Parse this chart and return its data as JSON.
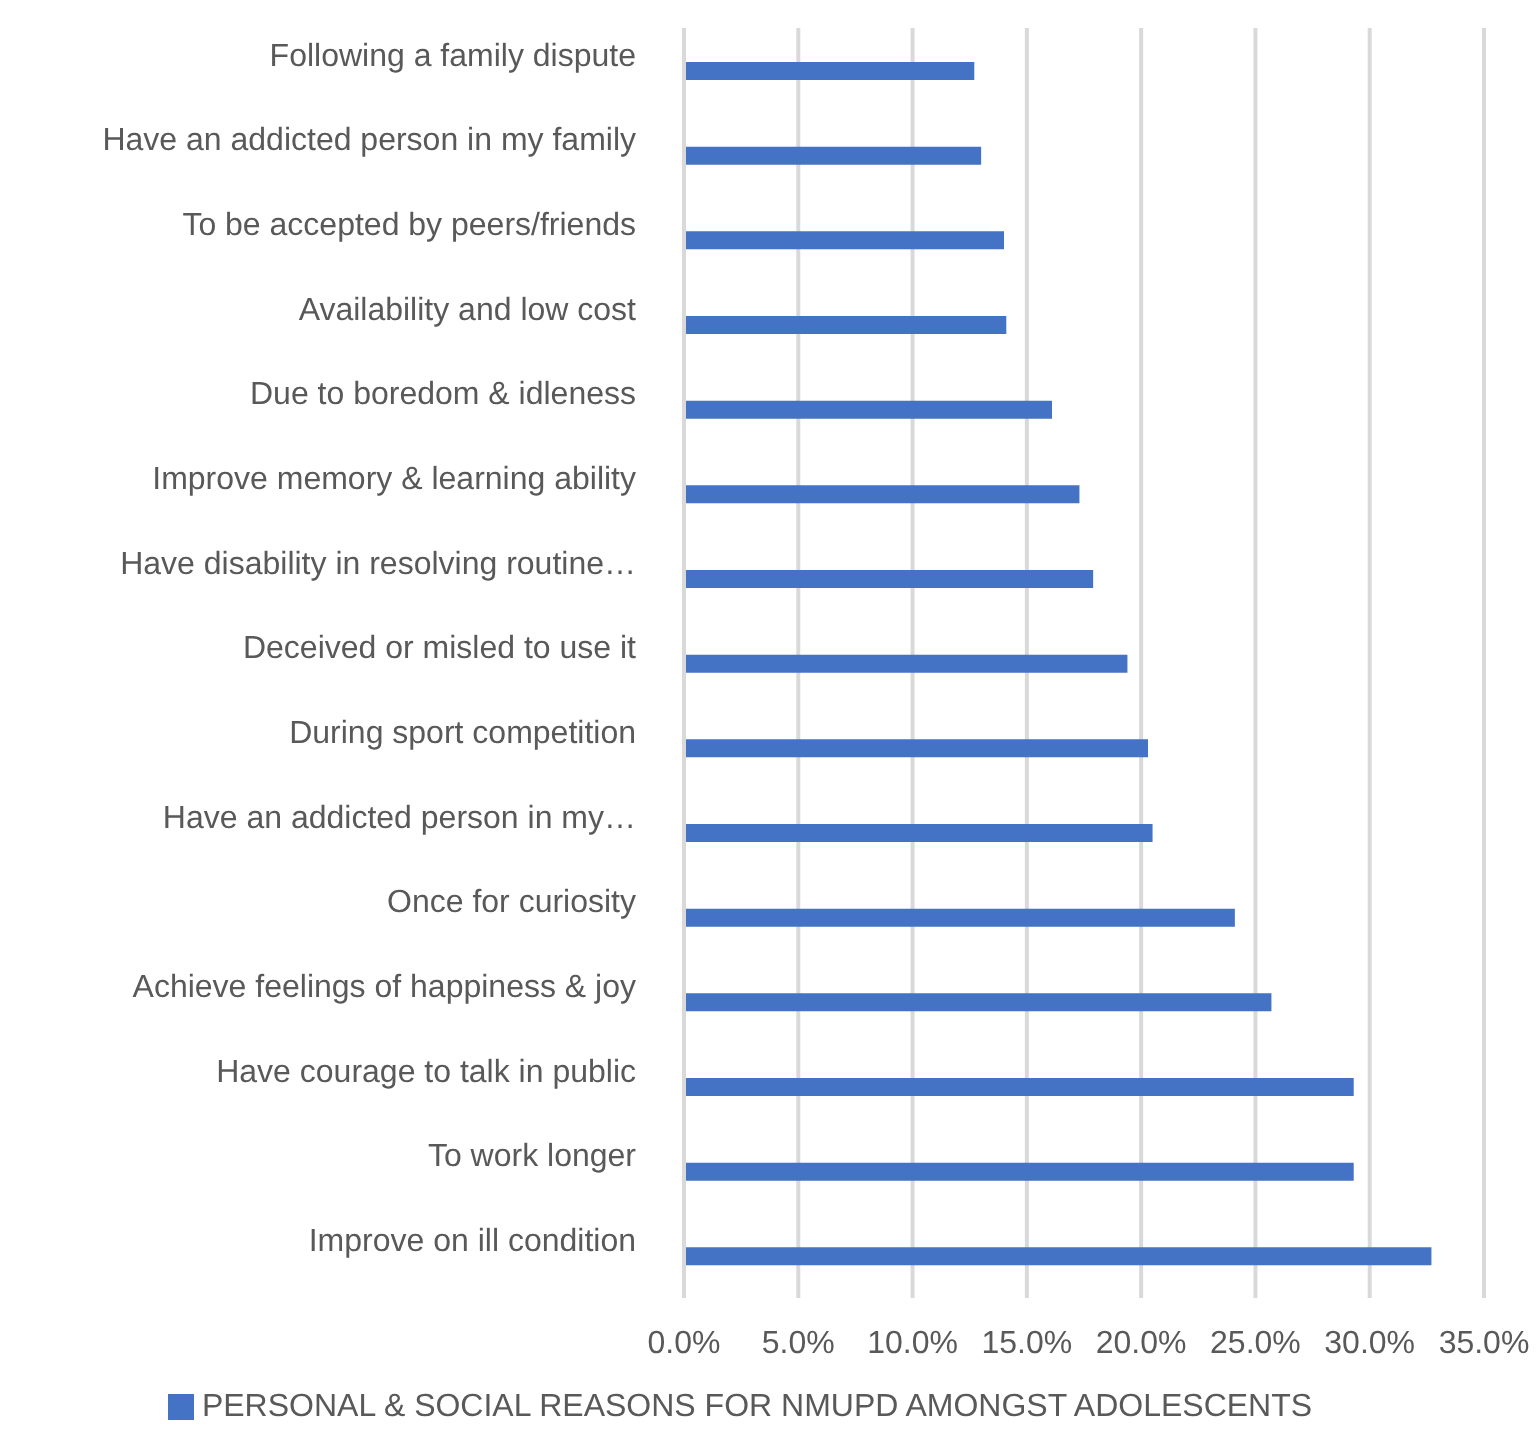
{
  "chart_data": {
    "type": "bar",
    "orientation": "horizontal",
    "categories": [
      "Following a family dispute",
      "Have an addicted person in my family",
      "To be accepted by peers/friends",
      "Availability and low cost",
      "Due to boredom & idleness",
      "Improve memory & learning ability",
      "Have disability in resolving routine…",
      "Deceived or misled to use it",
      "During sport competition",
      "Have an addicted person in my…",
      "Once for curiosity",
      "Achieve feelings of happiness & joy",
      "Have courage to talk in public",
      "To work longer",
      "Improve on ill condition"
    ],
    "series": [
      {
        "name": "PERSONAL & SOCIAL REASONS FOR NMUPD AMONGST ADOLESCENTS",
        "color": "#4472c4",
        "values": [
          12.7,
          13.0,
          14.0,
          14.1,
          16.1,
          17.3,
          17.9,
          19.4,
          20.3,
          20.5,
          24.1,
          25.7,
          29.3,
          29.3,
          32.7
        ]
      }
    ],
    "xlim": [
      0,
      35
    ],
    "xticks": [
      {
        "value": 0,
        "label": "0.0%"
      },
      {
        "value": 5,
        "label": "5.0%"
      },
      {
        "value": 10,
        "label": "10.0%"
      },
      {
        "value": 15,
        "label": "15.0%"
      },
      {
        "value": 20,
        "label": "20.0%"
      },
      {
        "value": 25,
        "label": "25.0%"
      },
      {
        "value": 30,
        "label": "30.0%"
      },
      {
        "value": 35,
        "label": "35.0%"
      }
    ],
    "grid": "x",
    "legend": "bottom"
  }
}
